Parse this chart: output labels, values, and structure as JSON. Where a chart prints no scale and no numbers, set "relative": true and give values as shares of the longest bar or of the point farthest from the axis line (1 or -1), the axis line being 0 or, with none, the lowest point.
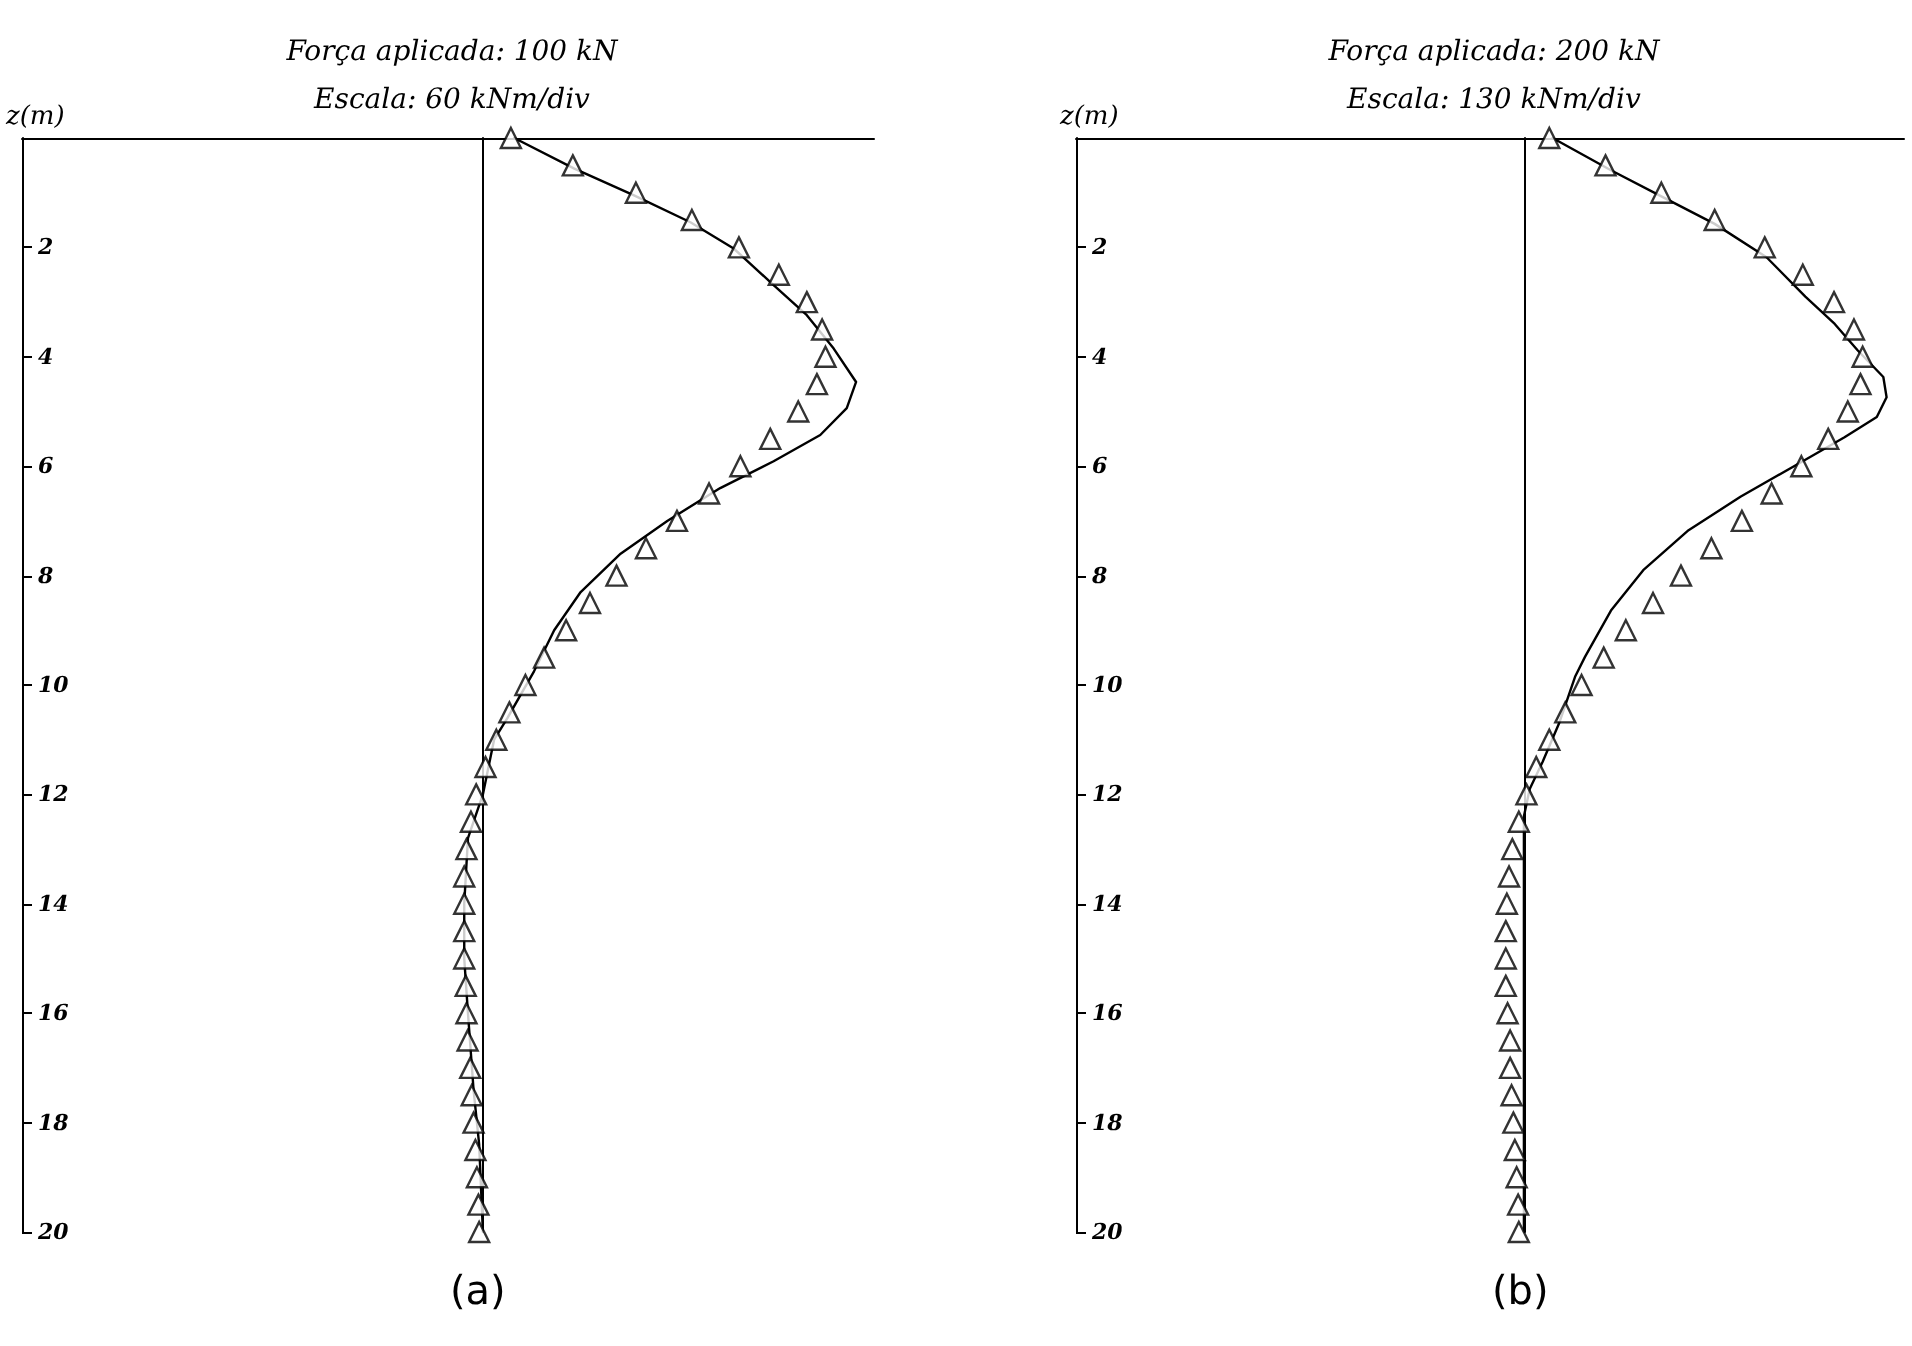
{
  "chart_data": [
    {
      "type": "line",
      "title": "Força aplicada: 100 kN",
      "subtitle": "Escala: 60 kNm/div",
      "ylabel": "z(m)",
      "orientation": "horizontal",
      "relative": true,
      "ylim": [
        20,
        0
      ],
      "yticks": [
        {
          "value": 0,
          "label": null
        },
        2,
        4,
        6,
        8,
        10,
        12,
        14,
        16,
        18,
        20
      ],
      "tick_labels": "y",
      "grid": false,
      "annotations": [
        "(a)"
      ],
      "series": [
        {
          "type": "line",
          "color": "#000000",
          "line_style": "solid",
          "x": [
            0,
            0.56,
            1.05,
            1.54,
            2.02,
            2.69,
            3.24,
            3.85,
            4.46,
            4.94,
            5.43,
            5.91,
            6.4,
            7.0,
            7.6,
            8.3,
            9.0,
            9.75,
            10.6,
            11.0,
            12.0,
            12.8,
            14.0,
            15.0,
            16.0,
            17.4,
            18.4,
            20.0
          ],
          "values": [
            0.084,
            0.245,
            0.405,
            0.556,
            0.672,
            0.779,
            0.868,
            0.94,
            1.0,
            0.975,
            0.904,
            0.779,
            0.636,
            0.494,
            0.369,
            0.262,
            0.191,
            0.137,
            0.066,
            0.03,
            0.0,
            -0.04,
            -0.05,
            -0.05,
            -0.04,
            -0.025,
            -0.01,
            0.0
          ]
        },
        {
          "type": "scatter",
          "color": "#000000",
          "marker": "triangle",
          "x": [
            0,
            0.5,
            1,
            1.5,
            2,
            2.5,
            3,
            3.5,
            4,
            4.5,
            5,
            5.5,
            6,
            6.5,
            7,
            7.5,
            8,
            8.5,
            9,
            9.5,
            10,
            10.5,
            11,
            11.5,
            12,
            12.5,
            13,
            13.5,
            14,
            14.5,
            15,
            15.5,
            16,
            16.5,
            17,
            17.5,
            18,
            18.5,
            19,
            19.5,
            20
          ],
          "values": [
            0.075,
            0.241,
            0.41,
            0.56,
            0.686,
            0.793,
            0.868,
            0.909,
            0.918,
            0.895,
            0.845,
            0.77,
            0.69,
            0.606,
            0.52,
            0.437,
            0.358,
            0.287,
            0.223,
            0.164,
            0.114,
            0.071,
            0.036,
            0.007,
            -0.018,
            -0.032,
            -0.044,
            -0.05,
            -0.05,
            -0.05,
            -0.05,
            -0.046,
            -0.044,
            -0.041,
            -0.034,
            -0.03,
            -0.025,
            -0.02,
            -0.016,
            -0.012,
            -0.01
          ]
        }
      ]
    },
    {
      "type": "line",
      "title": "Força aplicada: 200 kN",
      "subtitle": "Escala: 130 kNm/div",
      "ylabel": "z(m)",
      "orientation": "horizontal",
      "relative": true,
      "ylim": [
        20,
        0
      ],
      "yticks": [
        {
          "value": 0,
          "label": null
        },
        2,
        4,
        6,
        8,
        10,
        12,
        14,
        16,
        18,
        20
      ],
      "tick_labels": "y",
      "grid": false,
      "annotations": [
        "(b)"
      ],
      "series": [
        {
          "type": "line",
          "color": "#000000",
          "line_style": "solid",
          "x": [
            0,
            0.59,
            1.08,
            1.57,
            2.18,
            2.9,
            3.4,
            3.88,
            4.37,
            4.74,
            5.1,
            5.47,
            5.95,
            6.56,
            7.17,
            7.9,
            8.64,
            9.49,
            9.85,
            10.7,
            11.4,
            11.9,
            12.4,
            13.0,
            16.0,
            20.0
          ],
          "values": [
            0.079,
            0.24,
            0.383,
            0.526,
            0.669,
            0.776,
            0.857,
            0.92,
            0.991,
            1.0,
            0.973,
            0.884,
            0.758,
            0.597,
            0.454,
            0.329,
            0.24,
            0.168,
            0.141,
            0.097,
            0.052,
            0.016,
            0.0,
            0.0,
            0.0,
            0.0
          ]
        },
        {
          "type": "scatter",
          "color": "#000000",
          "marker": "triangle",
          "x": [
            0,
            0.5,
            1,
            1.5,
            2,
            2.5,
            3,
            3.5,
            4,
            4.5,
            5,
            5.5,
            6,
            6.5,
            7,
            7.5,
            8,
            8.5,
            9,
            9.5,
            10,
            10.5,
            11,
            11.5,
            12,
            12.5,
            13,
            13.5,
            14,
            14.5,
            15,
            15.5,
            16,
            16.5,
            17,
            17.5,
            18,
            18.5,
            19,
            19.5,
            20
          ],
          "values": [
            0.07,
            0.225,
            0.379,
            0.526,
            0.664,
            0.769,
            0.855,
            0.91,
            0.934,
            0.928,
            0.893,
            0.839,
            0.765,
            0.683,
            0.601,
            0.517,
            0.433,
            0.356,
            0.281,
            0.22,
            0.159,
            0.114,
            0.07,
            0.034,
            0.007,
            -0.014,
            -0.032,
            -0.041,
            -0.047,
            -0.05,
            -0.05,
            -0.05,
            -0.045,
            -0.038,
            -0.038,
            -0.034,
            -0.029,
            -0.025,
            -0.02,
            -0.016,
            -0.014
          ]
        }
      ]
    }
  ]
}
